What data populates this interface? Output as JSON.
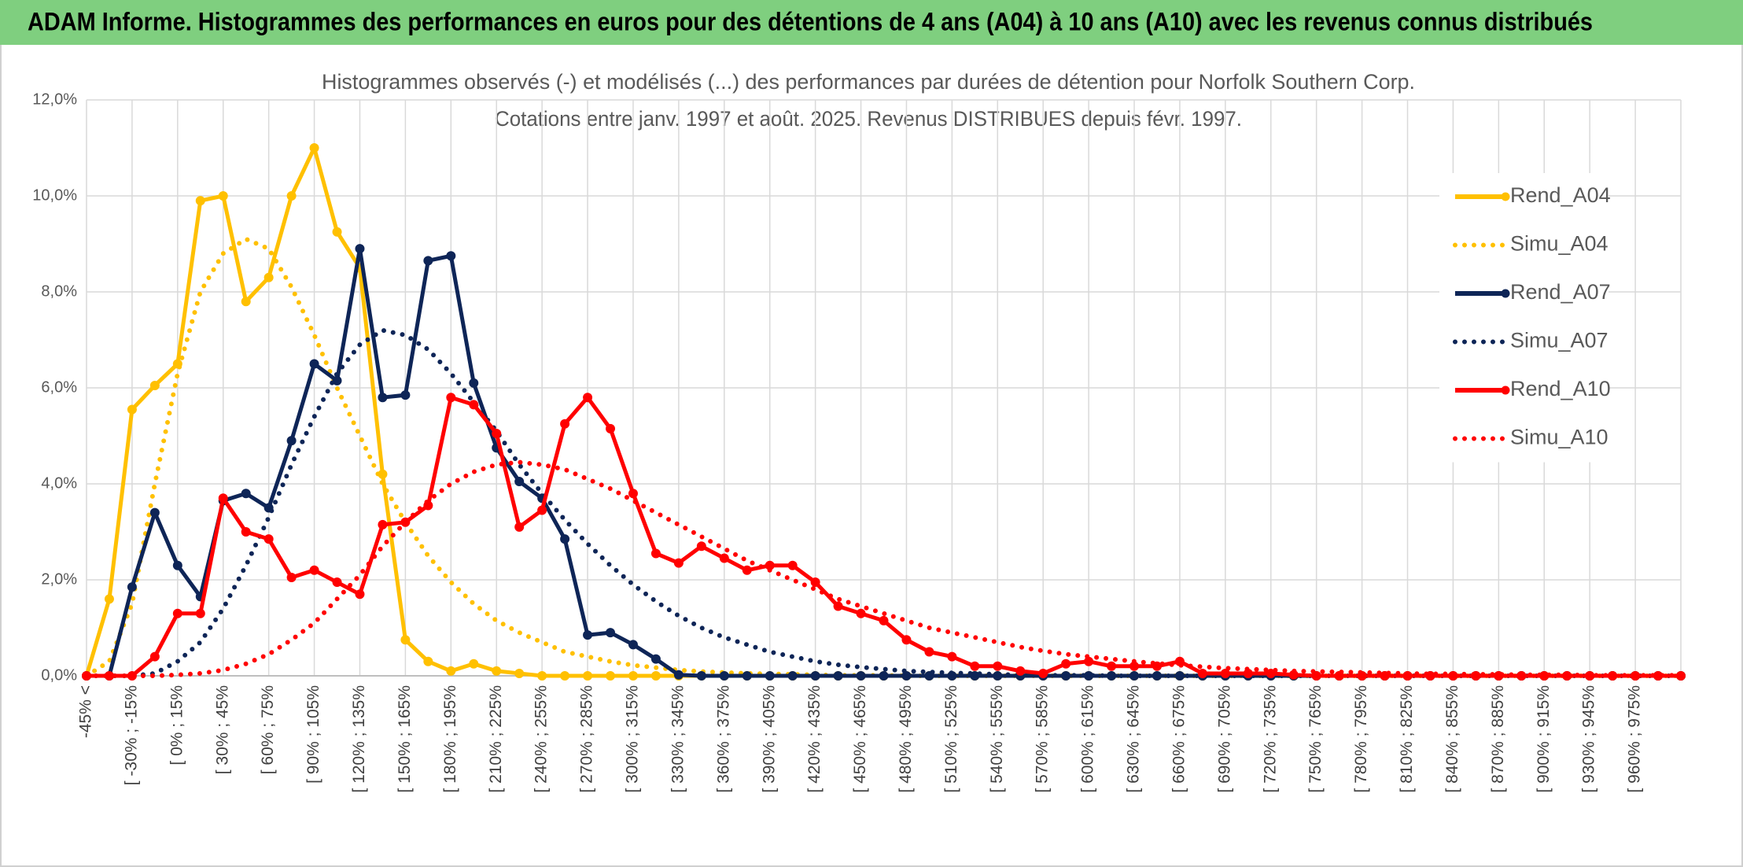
{
  "chart_data": {
    "type": "line",
    "title": "ADAM Informe. Histogrammes des performances en euros pour des détentions de 4 ans (A04) à 10 ans (A10) avec les revenus connus distribués",
    "subtitle": [
      "Histogrammes observés (-) et modélisés (...) des performances par durées de détention pour Norfolk Southern Corp.",
      "Cotations entre janv. 1997 et août. 2025. Revenus DISTRIBUES depuis févr. 1997."
    ],
    "categories": [
      "-45% <",
      null,
      "[ -30% ; -15%",
      null,
      "[ 0% ; 15%",
      null,
      "[ 30% ; 45%",
      null,
      "[ 60% ; 75%",
      null,
      "[ 90% ; 105%",
      null,
      "[ 120% ; 135%",
      null,
      "[ 150% ; 165%",
      null,
      "[ 180% ; 195%",
      null,
      "[ 210% ; 225%",
      null,
      "[ 240% ; 255%",
      null,
      "[ 270% ; 285%",
      null,
      "[ 300% ; 315%",
      null,
      "[ 330% ; 345%",
      null,
      "[ 360% ; 375%",
      null,
      "[ 390% ; 405%",
      null,
      "[ 420% ; 435%",
      null,
      "[ 450% ; 465%",
      null,
      "[ 480% ; 495%",
      null,
      "[ 510% ; 525%",
      null,
      "[ 540% ; 555%",
      null,
      "[ 570% ; 585%",
      null,
      "[ 600% ; 615%",
      null,
      "[ 630% ; 645%",
      null,
      "[ 660% ; 675%",
      null,
      "[ 690% ; 705%",
      null,
      "[ 720% ; 735%",
      null,
      "[ 750% ; 765%",
      null,
      "[ 780% ; 795%",
      null,
      "[ 810% ; 825%",
      null,
      "[ 840% ; 855%",
      null,
      "[ 870% ; 885%",
      null,
      "[ 900% ; 915%",
      null,
      "[ 930% ; 945%",
      null,
      "[ 960% ; 975%",
      null,
      null
    ],
    "ylim": [
      0,
      12
    ],
    "yticks": [
      {
        "value": 0,
        "label": "0,0%"
      },
      {
        "value": 2,
        "label": "2,0%"
      },
      {
        "value": 4,
        "label": "4,0%"
      },
      {
        "value": 6,
        "label": "6,0%"
      },
      {
        "value": 8,
        "label": "8,0%"
      },
      {
        "value": 10,
        "label": "10,0%"
      },
      {
        "value": 12,
        "label": "12,0%"
      }
    ],
    "grid": true,
    "legend": "right",
    "series": [
      {
        "name": "Rend_A04",
        "color": "#ffc000",
        "dash": "solid",
        "marker": true,
        "values": [
          0,
          1.6,
          5.55,
          6.05,
          6.5,
          9.9,
          10.0,
          7.8,
          8.3,
          10.0,
          11.0,
          9.25,
          8.5,
          4.2,
          0.75,
          0.3,
          0.1,
          0.25,
          0.1,
          0.05,
          0,
          0,
          0,
          0,
          0,
          0,
          0,
          0,
          0,
          0,
          0,
          0,
          0,
          0,
          0,
          0,
          0,
          0,
          0,
          0,
          0,
          0,
          0,
          0,
          0,
          0,
          0,
          0,
          0,
          0,
          0,
          0,
          0,
          0,
          0,
          0,
          0,
          0,
          0,
          0,
          0,
          0,
          0,
          0,
          0,
          0,
          0,
          0,
          0,
          0,
          0
        ]
      },
      {
        "name": "Simu_A04",
        "color": "#ffc000",
        "dash": "dotted",
        "marker": false,
        "values": [
          0,
          0.3,
          1.5,
          4.0,
          6.3,
          8.0,
          8.8,
          9.1,
          8.9,
          8.1,
          7.1,
          6.0,
          5.0,
          4.0,
          3.2,
          2.5,
          1.95,
          1.5,
          1.15,
          0.9,
          0.7,
          0.5,
          0.4,
          0.3,
          0.22,
          0.17,
          0.12,
          0.09,
          0.07,
          0.05,
          0.04,
          0.03,
          0.02,
          0.01,
          0.01,
          0.01,
          0,
          0,
          0,
          0,
          0,
          0,
          0,
          0,
          0,
          0,
          0,
          0,
          0,
          0,
          0,
          0,
          0,
          0,
          0,
          0,
          0,
          0,
          0,
          0,
          0,
          0,
          0,
          0,
          0,
          0,
          0,
          0,
          0,
          0,
          0
        ]
      },
      {
        "name": "Rend_A07",
        "color": "#0e2557",
        "dash": "solid",
        "marker": true,
        "values": [
          0,
          0,
          1.85,
          3.4,
          2.3,
          1.65,
          3.65,
          3.8,
          3.5,
          4.9,
          6.5,
          6.15,
          8.9,
          5.8,
          5.85,
          8.65,
          8.75,
          6.1,
          4.75,
          4.05,
          3.7,
          2.85,
          0.85,
          0.9,
          0.65,
          0.35,
          0.02,
          0,
          0,
          0,
          0,
          0,
          0,
          0,
          0,
          0,
          0,
          0,
          0,
          0,
          0,
          0,
          0,
          0,
          0,
          0,
          0,
          0,
          0,
          0,
          0,
          0,
          0,
          0,
          0,
          0,
          0,
          0,
          0,
          0,
          0,
          0,
          0,
          0,
          0,
          0,
          0,
          0,
          0,
          0,
          0
        ]
      },
      {
        "name": "Simu_A07",
        "color": "#0e2557",
        "dash": "dotted",
        "marker": false,
        "values": [
          0,
          0,
          0,
          0.05,
          0.3,
          0.7,
          1.4,
          2.3,
          3.3,
          4.4,
          5.4,
          6.3,
          6.9,
          7.2,
          7.1,
          6.8,
          6.3,
          5.7,
          5.1,
          4.4,
          3.8,
          3.25,
          2.75,
          2.3,
          1.9,
          1.55,
          1.25,
          1.0,
          0.8,
          0.65,
          0.5,
          0.4,
          0.3,
          0.23,
          0.18,
          0.14,
          0.1,
          0.08,
          0.06,
          0.05,
          0.03,
          0.02,
          0.01,
          0.01,
          0.01,
          0,
          0,
          0,
          0,
          0,
          0,
          0,
          0,
          0,
          0,
          0,
          0,
          0,
          0,
          0,
          0,
          0,
          0,
          0,
          0,
          0,
          0,
          0,
          0,
          0,
          0
        ]
      },
      {
        "name": "Rend_A10",
        "color": "#ff0000",
        "dash": "solid",
        "marker": true,
        "values": [
          0,
          0,
          0,
          0.4,
          1.3,
          1.3,
          3.7,
          3.0,
          2.85,
          2.05,
          2.2,
          1.95,
          1.7,
          3.15,
          3.2,
          3.55,
          5.8,
          5.65,
          5.05,
          3.1,
          3.45,
          5.25,
          5.8,
          5.15,
          3.8,
          2.55,
          2.35,
          2.7,
          2.45,
          2.2,
          2.3,
          2.3,
          1.95,
          1.45,
          1.3,
          1.15,
          0.75,
          0.5,
          0.4,
          0.2,
          0.2,
          0.1,
          0.05,
          0.25,
          0.3,
          0.2,
          0.2,
          0.2,
          0.3,
          0.05,
          0.05,
          0.05,
          0.05,
          0.02,
          0,
          0,
          0,
          0,
          0,
          0,
          0,
          0,
          0,
          0,
          0,
          0,
          0,
          0,
          0,
          0,
          0
        ]
      },
      {
        "name": "Simu_A10",
        "color": "#ff0000",
        "dash": "dotted",
        "marker": false,
        "values": [
          0,
          0,
          0,
          0,
          0.02,
          0.05,
          0.12,
          0.25,
          0.45,
          0.75,
          1.1,
          1.6,
          2.1,
          2.7,
          3.2,
          3.65,
          4.0,
          4.25,
          4.4,
          4.45,
          4.4,
          4.3,
          4.1,
          3.9,
          3.65,
          3.4,
          3.15,
          2.9,
          2.65,
          2.4,
          2.2,
          2.0,
          1.8,
          1.6,
          1.45,
          1.3,
          1.15,
          1.0,
          0.9,
          0.8,
          0.7,
          0.6,
          0.52,
          0.45,
          0.4,
          0.35,
          0.3,
          0.26,
          0.22,
          0.19,
          0.16,
          0.14,
          0.12,
          0.1,
          0.09,
          0.08,
          0.07,
          0.06,
          0.05,
          0.04,
          0.04,
          0.03,
          0.03,
          0.02,
          0.02,
          0.02,
          0.01,
          0.01,
          0.01,
          0.01,
          0.01
        ]
      }
    ]
  }
}
